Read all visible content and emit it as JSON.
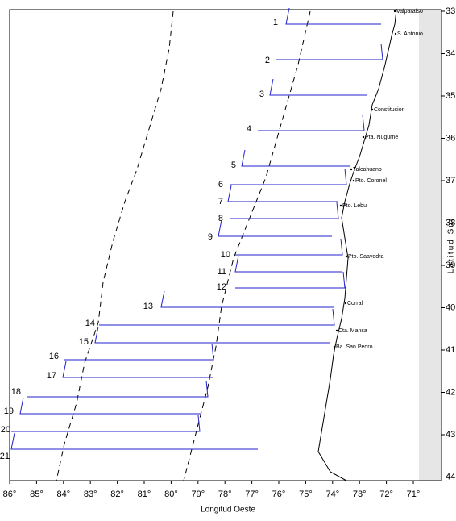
{
  "map": {
    "x_axis": {
      "label": "Longitud Oeste",
      "ticks": [
        {
          "value": 86,
          "label": "86°"
        },
        {
          "value": 85,
          "label": "85°"
        },
        {
          "value": 84,
          "label": "84°"
        },
        {
          "value": 83,
          "label": "83°"
        },
        {
          "value": 82,
          "label": "82°"
        },
        {
          "value": 81,
          "label": "81°"
        },
        {
          "value": 80,
          "label": "80°"
        },
        {
          "value": 79,
          "label": "79°"
        },
        {
          "value": 78,
          "label": "78°"
        },
        {
          "value": 77,
          "label": "77°"
        },
        {
          "value": 76,
          "label": "76°"
        },
        {
          "value": 75,
          "label": "75°"
        },
        {
          "value": 74,
          "label": "74°"
        },
        {
          "value": 73,
          "label": "73°"
        },
        {
          "value": 72,
          "label": "72°"
        },
        {
          "value": 71,
          "label": "71°"
        }
      ]
    },
    "y_axis": {
      "label": "Latitud Sur",
      "ticks": [
        {
          "value": 33,
          "label": "33°"
        },
        {
          "value": 34,
          "label": "34°"
        },
        {
          "value": 35,
          "label": "35°"
        },
        {
          "value": 36,
          "label": "36°"
        },
        {
          "value": 37,
          "label": "37°"
        },
        {
          "value": 38,
          "label": "38°"
        },
        {
          "value": 39,
          "label": "39°"
        },
        {
          "value": 40,
          "label": "40°"
        },
        {
          "value": 41,
          "label": "41°"
        },
        {
          "value": 42,
          "label": "42°"
        },
        {
          "value": 43,
          "label": "43°"
        },
        {
          "value": 44,
          "label": "44°"
        }
      ]
    },
    "places": [
      "Valparaíso",
      "S. Antonio",
      "Constitucion",
      "Pta. Nugurne",
      "Talcahuano",
      "Pto. Coronel",
      "Pto. Lebu",
      "Pto. Saavedra",
      "Corral",
      "Cta. Mansa",
      "Ba. San Pedro"
    ],
    "transects": [
      "1",
      "2",
      "3",
      "4",
      "5",
      "6",
      "7",
      "8",
      "9",
      "10",
      "11",
      "12",
      "13",
      "14",
      "15",
      "16",
      "17",
      "18",
      "19",
      "20",
      "21"
    ]
  }
}
